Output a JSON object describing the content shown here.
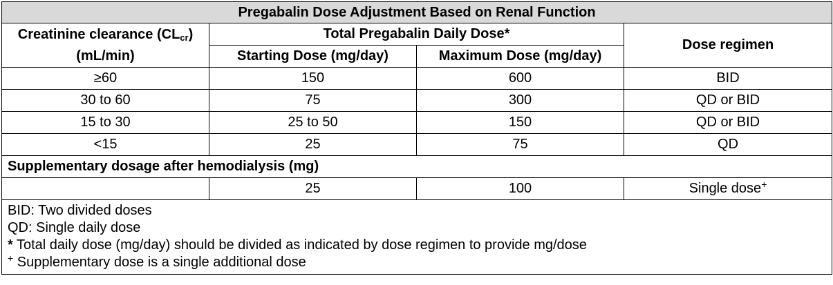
{
  "title": "Pregabalin Dose Adjustment Based on Renal Function",
  "headers": {
    "clearance_main": "Creatinine clearance (CL",
    "clearance_sub": "cr",
    "clearance_close": ")",
    "clearance_unit": "(mL/min)",
    "total_dose": "Total Pregabalin Daily Dose*",
    "starting_dose": "Starting Dose (mg/day)",
    "maximum_dose": "Maximum Dose (mg/day)",
    "dose_regimen": "Dose regimen"
  },
  "rows": [
    {
      "clearance": "≥60",
      "starting": "150",
      "maximum": "600",
      "regimen": "BID"
    },
    {
      "clearance": "30 to 60",
      "starting": "75",
      "maximum": "300",
      "regimen": "QD or BID"
    },
    {
      "clearance": "15 to 30",
      "starting": "25 to 50",
      "maximum": "150",
      "regimen": "QD or BID"
    },
    {
      "clearance": "<15",
      "starting": "25",
      "maximum": "75",
      "regimen": "QD"
    }
  ],
  "supplementary": {
    "label": "Supplementary dosage after hemodialysis (mg)",
    "clearance": "",
    "starting": "25",
    "maximum": "100",
    "regimen": "Single dose",
    "regimen_mark": "+"
  },
  "notes": {
    "bid": "BID: Two divided doses",
    "qd": "QD: Single daily dose",
    "asterisk_mark": "*",
    "asterisk_text": " Total daily dose (mg/day) should be divided as indicated by dose regimen to provide mg/dose",
    "plus_mark": "+",
    "plus_text": " Supplementary dose is a single additional dose"
  }
}
